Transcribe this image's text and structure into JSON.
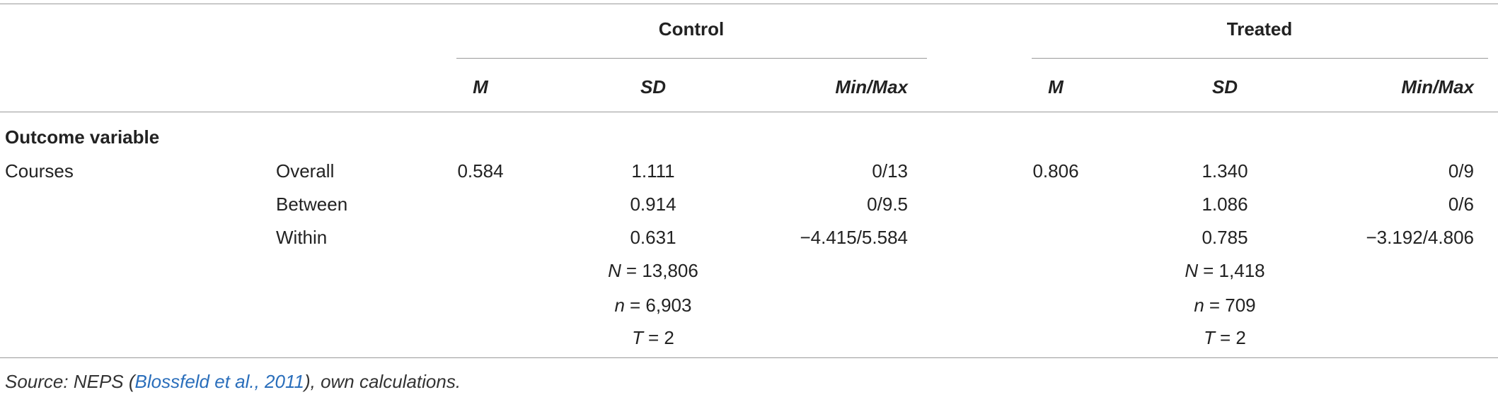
{
  "table": {
    "groups": [
      "Control",
      "Treated"
    ],
    "columns": [
      "M",
      "SD",
      "Min/Max",
      "M",
      "SD",
      "Min/Max"
    ],
    "section": "Outcome variable",
    "variable": "Courses",
    "rows": [
      {
        "label": "Overall",
        "cells": [
          "0.584",
          "1.111",
          "0/13",
          "0.806",
          "1.340",
          "0/9"
        ]
      },
      {
        "label": "Between",
        "cells": [
          null,
          "0.914",
          "0/9.5",
          null,
          "1.086",
          "0/6"
        ]
      },
      {
        "label": "Within",
        "cells": [
          null,
          "0.631",
          "−4.415/5.584",
          null,
          "0.785",
          "−3.192/4.806"
        ]
      },
      {
        "label": null,
        "cells": [
          null,
          {
            "symbol": "N",
            "text": "= 13,806"
          },
          null,
          null,
          {
            "symbol": "N",
            "text": "= 1,418"
          },
          null
        ]
      },
      {
        "label": null,
        "cells": [
          null,
          {
            "symbol": "n",
            "text": "= 6,903"
          },
          null,
          null,
          {
            "symbol": "n",
            "text": "= 709"
          },
          null
        ]
      },
      {
        "label": null,
        "cells": [
          null,
          {
            "symbol": "T",
            "text": "= 2"
          },
          null,
          null,
          {
            "symbol": "T",
            "text": "= 2"
          },
          null
        ]
      }
    ],
    "note": {
      "prefix": "Source: NEPS (",
      "link": "Blossfeld et al., 2011",
      "suffix": "), own calculations."
    }
  }
}
